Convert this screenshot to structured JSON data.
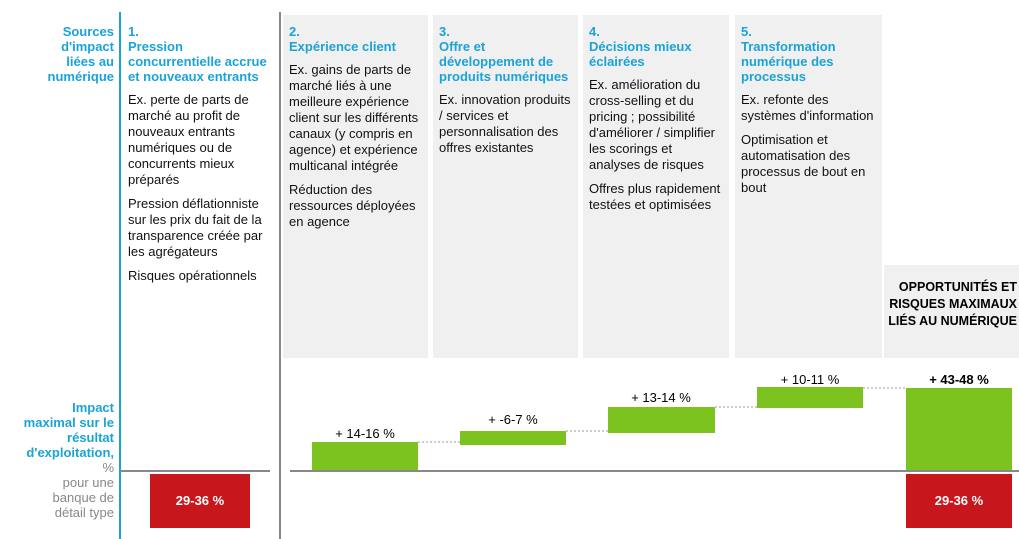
{
  "row_headers": {
    "sources": "Sources d'impact liées au numérique",
    "impact_title": "Impact maximal sur le résultat d'exploitation,",
    "impact_unit": "%",
    "impact_note": "pour une banque de détail type"
  },
  "columns": [
    {
      "number": "1.",
      "title": "Pression concurrentielle accrue et nouveaux entrants",
      "paragraphs": [
        "Ex. perte de parts de marché au profit de nouveaux entrants numériques ou de concurrents mieux préparés",
        "Pression déflationniste sur les prix du fait de la transparence créée par les agrégateurs",
        "Risques opérationnels"
      ],
      "impact": "29-36 %"
    },
    {
      "number": "2.",
      "title": "Expérience client",
      "paragraphs": [
        "Ex. gains de parts de marché liés à une meilleure expérience client sur les différents canaux (y compris en agence) et expérience multicanal intégrée",
        "Réduction des ressources déployées en agence"
      ],
      "impact": "+ 14-16 %"
    },
    {
      "number": "3.",
      "title": "Offre et développement de produits numériques",
      "paragraphs": [
        "Ex. innovation produits / services et personnalisation des offres existantes"
      ],
      "impact": "+ -6-7 %"
    },
    {
      "number": "4.",
      "title": "Décisions mieux éclairées",
      "paragraphs": [
        "Ex. amélioration du cross-selling  et du pricing ; possibilité d'améliorer / simplifier les scorings et analyses de risques",
        "Offres plus rapidement testées et optimisées"
      ],
      "impact": "+ 13-14 %"
    },
    {
      "number": "5.",
      "title": "Transformation numérique des processus",
      "paragraphs": [
        "Ex. refonte des systèmes d'information",
        "Optimisation et automatisation des processus de bout en bout"
      ],
      "impact": "+ 10-11 %"
    }
  ],
  "summary": {
    "title": "OPPORTUNITÉS ET RISQUES MAXIMAUX LIÉS AU NUMÉRIQUE",
    "opportunities": "+ 43-48 %",
    "risks": "29-36 %"
  }
}
